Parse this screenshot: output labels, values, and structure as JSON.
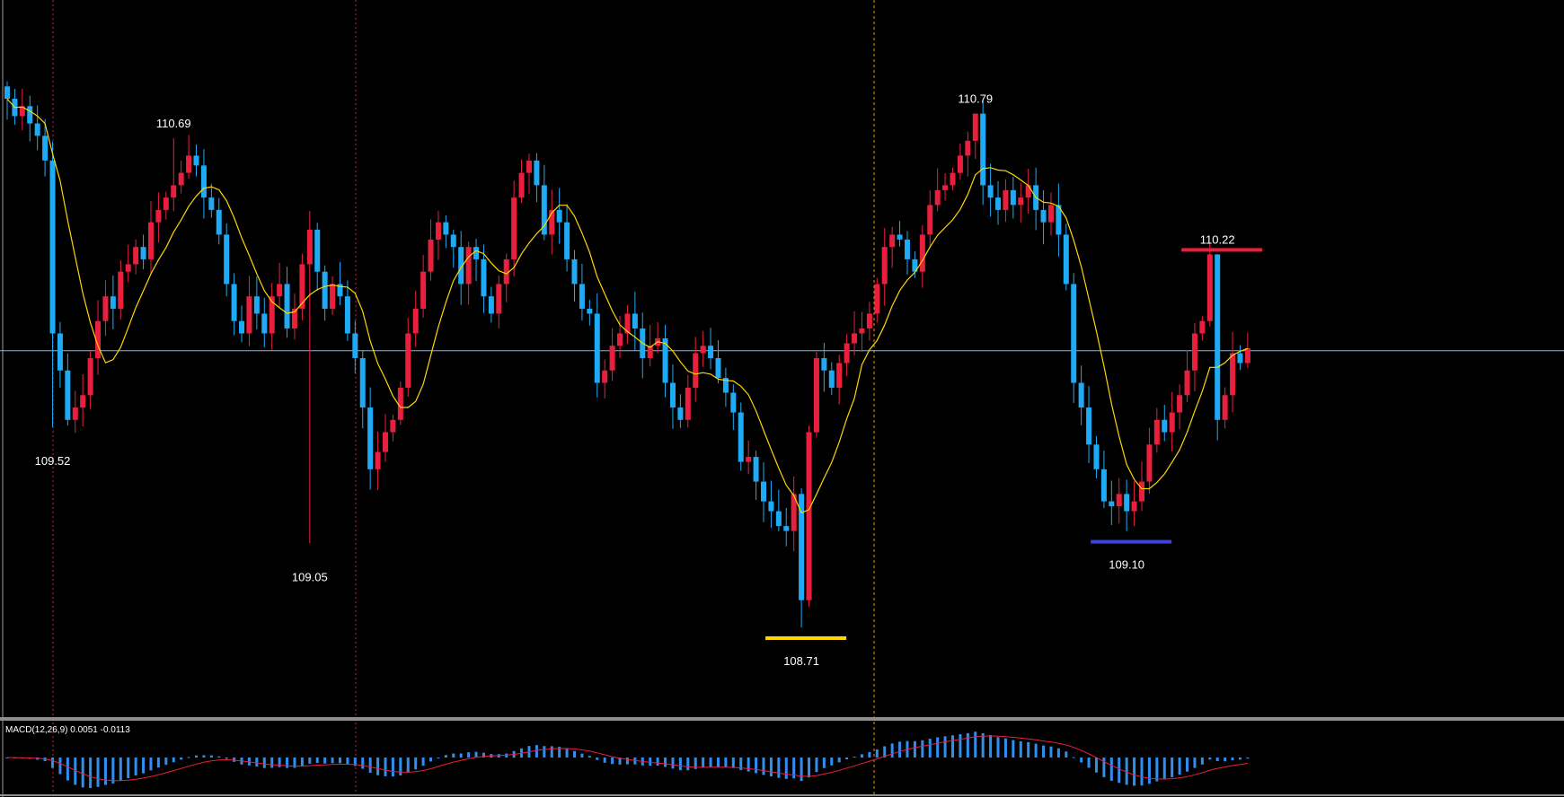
{
  "chart_data": {
    "type": "candlestick",
    "indicators": {
      "moving_average_color": "#ffd700"
    },
    "price_range": [
      108.35,
      111.25
    ],
    "current_price": 109.83,
    "colors": {
      "background": "#000000",
      "bull": "#e8203e",
      "bear": "#1eaaf5",
      "ma": "#ffd700",
      "macd_hist": "#2f8ff0",
      "macd_signal": "#e8203e",
      "price_line": "#9fb4c8",
      "swing_high": "#e8203e",
      "swing_low_yellow": "#ffd700",
      "swing_low_blue": "#3b45d8",
      "vline_red": "#c0283c",
      "vline_orange": "#e09a1a"
    },
    "candle_closes": [
      110.85,
      110.78,
      110.82,
      110.75,
      110.7,
      110.6,
      109.9,
      109.75,
      109.55,
      109.6,
      109.65,
      109.8,
      109.95,
      110.05,
      110.0,
      110.15,
      110.18,
      110.25,
      110.2,
      110.35,
      110.4,
      110.45,
      110.5,
      110.55,
      110.62,
      110.58,
      110.45,
      110.4,
      110.3,
      110.1,
      109.95,
      109.9,
      110.05,
      109.98,
      109.9,
      110.05,
      110.1,
      109.92,
      110.0,
      110.18,
      110.32,
      110.15,
      110.0,
      110.1,
      110.05,
      109.9,
      109.8,
      109.6,
      109.35,
      109.42,
      109.5,
      109.55,
      109.68,
      109.9,
      110.0,
      110.15,
      110.28,
      110.35,
      110.3,
      110.25,
      110.1,
      110.25,
      110.2,
      110.05,
      109.98,
      110.1,
      110.2,
      110.45,
      110.55,
      110.6,
      110.5,
      110.3,
      110.4,
      110.35,
      110.2,
      110.1,
      110.0,
      109.98,
      109.7,
      109.75,
      109.85,
      109.9,
      109.98,
      109.92,
      109.8,
      109.85,
      109.88,
      109.7,
      109.6,
      109.55,
      109.68,
      109.82,
      109.85,
      109.8,
      109.72,
      109.66,
      109.58,
      109.38,
      109.4,
      109.3,
      109.22,
      109.18,
      109.12,
      109.1,
      109.25,
      108.82,
      109.5,
      109.8,
      109.75,
      109.68,
      109.78,
      109.86,
      109.9,
      109.92,
      109.98,
      110.1,
      110.25,
      110.3,
      110.28,
      110.2,
      110.15,
      110.3,
      110.42,
      110.48,
      110.5,
      110.55,
      110.62,
      110.68,
      110.79,
      110.5,
      110.45,
      110.4,
      110.48,
      110.42,
      110.45,
      110.5,
      110.4,
      110.35,
      110.42,
      110.3,
      110.1,
      109.7,
      109.6,
      109.45,
      109.35,
      109.22,
      109.2,
      109.25,
      109.18,
      109.22,
      109.3,
      109.45,
      109.55,
      109.5,
      109.58,
      109.65,
      109.75,
      109.9,
      109.95,
      110.22,
      109.55,
      109.65,
      109.82,
      109.78,
      109.84
    ],
    "swing_labels": [
      {
        "text": "110.69",
        "kind": "high",
        "candle": 22
      },
      {
        "text": "109.52",
        "kind": "low",
        "candle": 6
      },
      {
        "text": "109.05",
        "kind": "low",
        "candle": 40
      },
      {
        "text": "108.71",
        "kind": "low",
        "candle": 105,
        "marker": "yellow"
      },
      {
        "text": "110.79",
        "kind": "high",
        "candle": 128
      },
      {
        "text": "109.10",
        "kind": "low",
        "candle": 148,
        "marker": "blue"
      },
      {
        "text": "110.22",
        "kind": "high",
        "candle": 160,
        "marker": "red"
      }
    ],
    "macd": {
      "label": "MACD(12,26,9) 0.0051 -0.0113",
      "params": [
        12,
        26,
        9
      ],
      "main": 0.0051,
      "signal": -0.0113
    }
  }
}
